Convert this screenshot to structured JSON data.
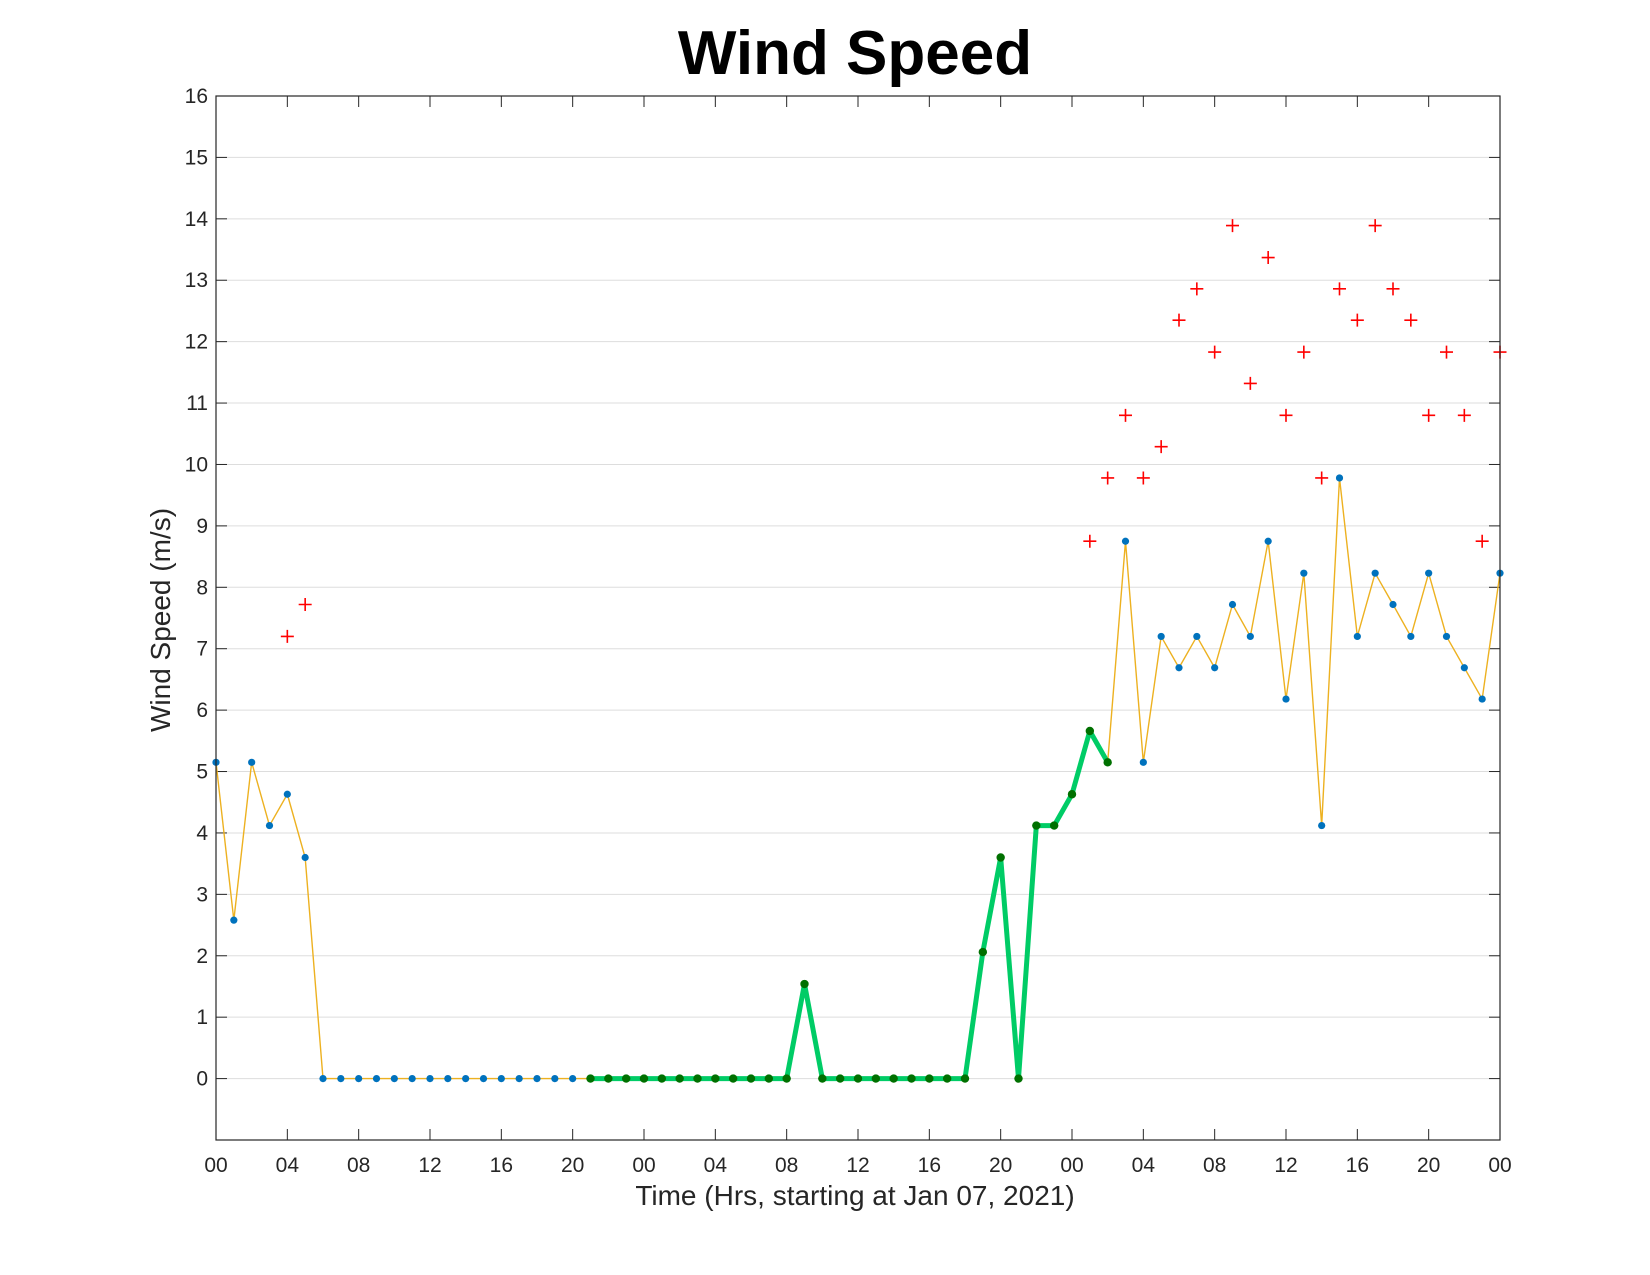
{
  "chart_data": {
    "type": "line",
    "title": "Wind Speed",
    "xlabel": "Time (Hrs, starting at Jan 07, 2021)",
    "ylabel": "Wind Speed (m/s)",
    "ylim": [
      -1,
      16
    ],
    "xlim": [
      0,
      72
    ],
    "grid": "horizontal",
    "yticks": [
      "0",
      "1",
      "2",
      "3",
      "4",
      "5",
      "6",
      "7",
      "8",
      "9",
      "10",
      "11",
      "12",
      "13",
      "14",
      "15",
      "16"
    ],
    "xticks": [
      {
        "x": 0,
        "label": "00"
      },
      {
        "x": 4,
        "label": "04"
      },
      {
        "x": 8,
        "label": "08"
      },
      {
        "x": 12,
        "label": "12"
      },
      {
        "x": 16,
        "label": "16"
      },
      {
        "x": 20,
        "label": "20"
      },
      {
        "x": 24,
        "label": "00"
      },
      {
        "x": 28,
        "label": "04"
      },
      {
        "x": 32,
        "label": "08"
      },
      {
        "x": 36,
        "label": "12"
      },
      {
        "x": 40,
        "label": "16"
      },
      {
        "x": 44,
        "label": "20"
      },
      {
        "x": 48,
        "label": "00"
      },
      {
        "x": 52,
        "label": "04"
      },
      {
        "x": 56,
        "label": "08"
      },
      {
        "x": 60,
        "label": "12"
      },
      {
        "x": 64,
        "label": "16"
      },
      {
        "x": 68,
        "label": "20"
      },
      {
        "x": 72,
        "label": "00"
      }
    ],
    "colors": {
      "wind_line": "#EDB120",
      "wind_point": "#0072BD",
      "highlight_line": "#00CC66",
      "highlight_point": "#007000",
      "gust": "#FF0000",
      "grid": "#DDDDDD"
    },
    "series": [
      {
        "key": "wind_speed",
        "x": [
          0,
          1,
          2,
          3,
          4,
          5,
          6,
          7,
          8,
          9,
          10,
          11,
          12,
          13,
          14,
          15,
          16,
          17,
          18,
          19,
          20,
          21,
          22,
          23,
          24,
          25,
          26,
          27,
          28,
          29,
          30,
          31,
          32,
          33,
          34,
          35,
          36,
          37,
          38,
          39,
          40,
          41,
          42,
          43,
          44,
          45,
          46,
          47,
          48,
          49,
          50,
          51,
          52,
          53,
          54,
          55,
          56,
          57,
          58,
          59,
          60,
          61,
          62,
          63,
          64,
          65,
          66,
          67,
          68,
          69,
          70,
          71,
          72
        ],
        "values": [
          5.15,
          2.58,
          5.15,
          4.12,
          4.63,
          3.6,
          0,
          0,
          0,
          0,
          0,
          0,
          0,
          0,
          0,
          0,
          0,
          0,
          0,
          0,
          0,
          0,
          0,
          0,
          0,
          0,
          0,
          0,
          0,
          0,
          0,
          0,
          0,
          1.54,
          0,
          0,
          0,
          0,
          0,
          0,
          0,
          0,
          0,
          2.06,
          3.6,
          0,
          4.12,
          4.12,
          4.63,
          5.66,
          5.15,
          8.75,
          5.15,
          7.2,
          6.69,
          7.2,
          6.69,
          7.72,
          7.2,
          8.75,
          6.18,
          8.23,
          4.12,
          9.78,
          7.2,
          8.23,
          7.72,
          7.2,
          8.23,
          7.2,
          6.69,
          6.18,
          8.23
        ]
      },
      {
        "key": "highlighted_segment",
        "x": [
          21,
          22,
          23,
          24,
          25,
          26,
          27,
          28,
          29,
          30,
          31,
          32,
          33,
          34,
          35,
          36,
          37,
          38,
          39,
          40,
          41,
          42,
          43,
          44,
          45,
          46,
          47,
          48,
          49,
          50
        ],
        "values": [
          0,
          0,
          0,
          0,
          0,
          0,
          0,
          0,
          0,
          0,
          0,
          0,
          1.54,
          0,
          0,
          0,
          0,
          0,
          0,
          0,
          0,
          0,
          2.06,
          3.6,
          0,
          4.12,
          4.12,
          4.63,
          5.66,
          5.15
        ]
      },
      {
        "key": "gusts",
        "x": [
          4,
          5,
          49,
          50,
          51,
          52,
          53,
          54,
          55,
          56,
          57,
          58,
          59,
          60,
          61,
          62,
          63,
          64,
          65,
          66,
          67,
          68,
          69,
          70,
          71,
          72
        ],
        "values": [
          7.2,
          7.72,
          8.75,
          9.78,
          10.8,
          9.78,
          10.29,
          12.35,
          12.86,
          11.83,
          13.89,
          11.32,
          13.37,
          10.8,
          11.83,
          9.78,
          12.86,
          12.35,
          13.89,
          12.86,
          12.35,
          10.8,
          11.83,
          10.8,
          8.75,
          11.83
        ]
      }
    ]
  }
}
